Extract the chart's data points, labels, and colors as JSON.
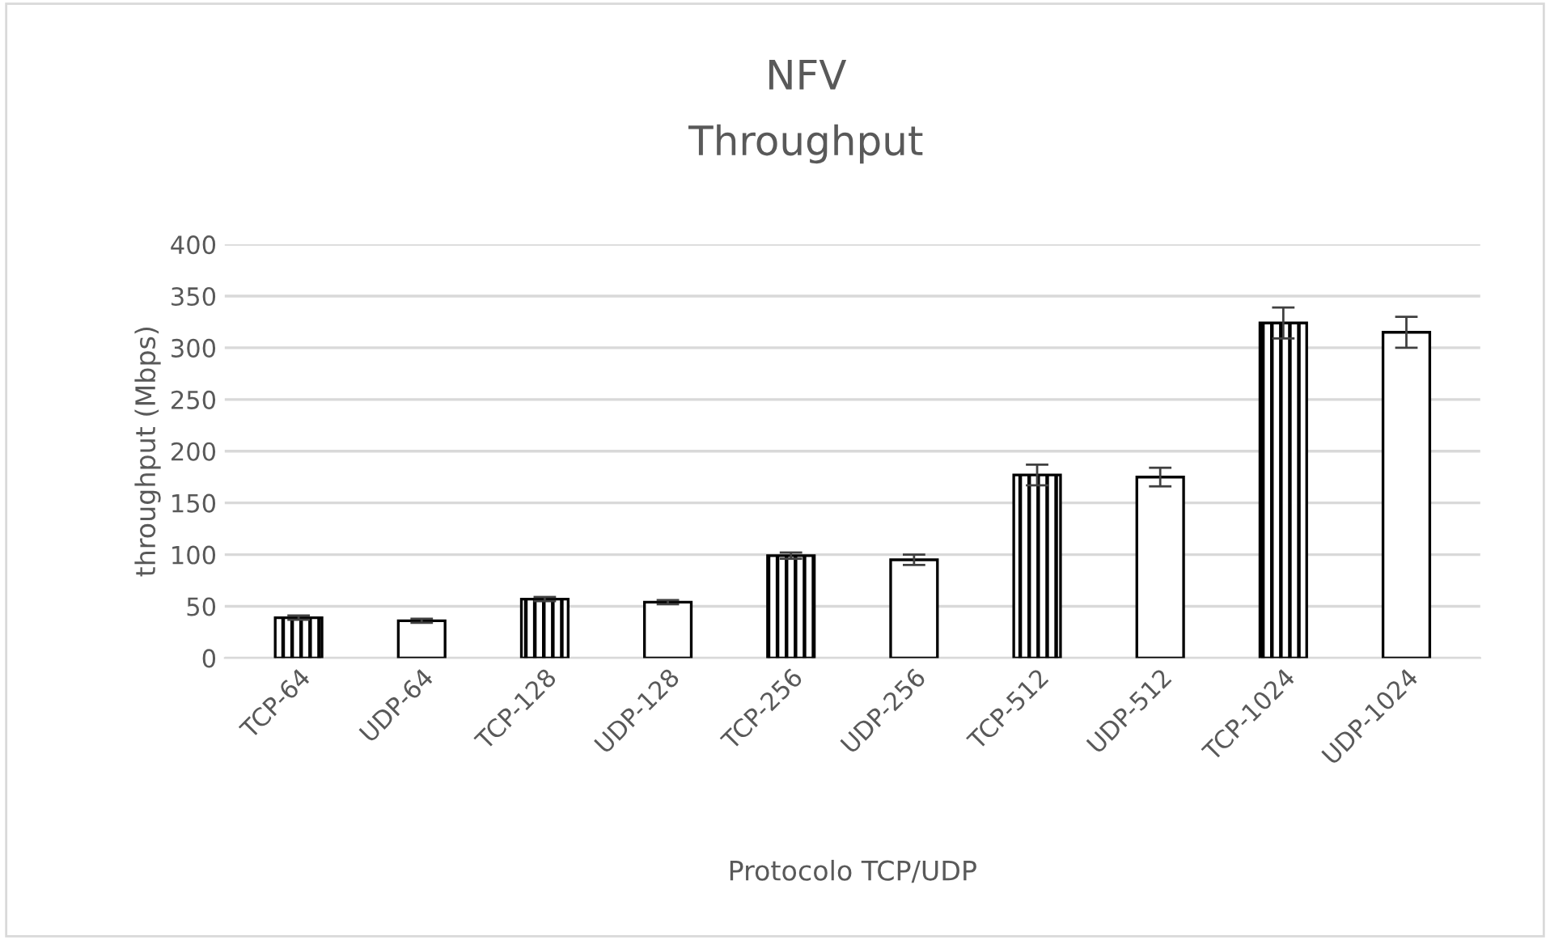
{
  "chart_data": {
    "type": "bar",
    "title": "NFV",
    "subtitle": "Throughput",
    "xlabel": "Protocolo TCP/UDP",
    "ylabel": "throughput (Mbps)",
    "categories": [
      "TCP-64",
      "UDP-64",
      "TCP-128",
      "UDP-128",
      "TCP-256",
      "UDP-256",
      "TCP-512",
      "UDP-512",
      "TCP-1024",
      "UDP-1024"
    ],
    "values": [
      39,
      36,
      57,
      54,
      99,
      95,
      177,
      175,
      324,
      315
    ],
    "errors": [
      2,
      2,
      2,
      2,
      3,
      5,
      10,
      9,
      15,
      15
    ],
    "color": "#000000",
    "ylim": [
      0,
      400
    ],
    "yticks": [
      0,
      50,
      100,
      150,
      200,
      250,
      300,
      350,
      400
    ],
    "grid": "y",
    "legend": false
  }
}
